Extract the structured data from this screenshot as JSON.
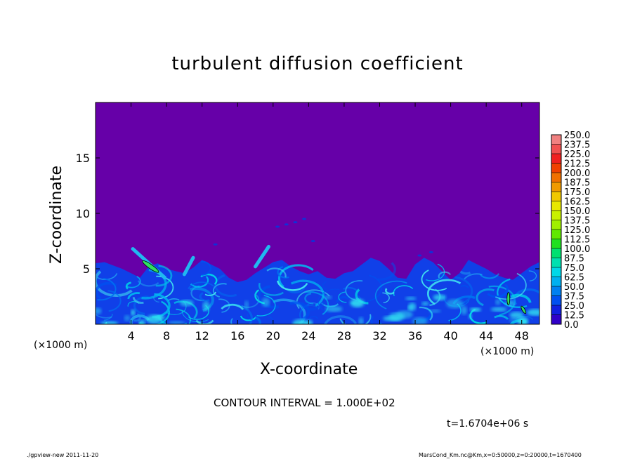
{
  "chart_data": {
    "type": "heatmap",
    "title": "turbulent diffusion coefficient",
    "xlabel": "X-coordinate",
    "ylabel": "Z-coordinate",
    "x_unit": "(×1000 m)",
    "y_unit": "(×1000 m)",
    "xlim": [
      0,
      50
    ],
    "ylim": [
      0,
      20
    ],
    "x_ticks": [
      4,
      8,
      12,
      16,
      20,
      24,
      28,
      32,
      36,
      40,
      44,
      48
    ],
    "y_ticks": [
      5,
      10,
      15
    ],
    "grid": false,
    "colorbar": {
      "levels": [
        "250.0",
        "237.5",
        "225.0",
        "212.5",
        "200.0",
        "187.5",
        "175.0",
        "162.5",
        "150.0",
        "137.5",
        "125.0",
        "112.5",
        "100.0",
        "87.5",
        "75.0",
        "62.5",
        "50.0",
        "37.5",
        "25.0",
        "12.5",
        "0.0"
      ],
      "colors": [
        "#f08080",
        "#f05050",
        "#f02020",
        "#f04000",
        "#f07000",
        "#f09a00",
        "#f0c800",
        "#e8e800",
        "#c8f000",
        "#a0f000",
        "#60e800",
        "#20e020",
        "#00e070",
        "#00e0b0",
        "#00d8e8",
        "#00b0f0",
        "#0080f0",
        "#0050f0",
        "#1020e0",
        "#3000c8",
        "#6600a8"
      ]
    },
    "contour_interval": "CONTOUR INTERVAL = 1.000E+02",
    "time_label": "t=1.6704e+06 s",
    "boundary_layer_top_km": [
      5.5,
      5.6,
      5.3,
      5.0,
      4.6,
      4.2,
      5.2,
      5.5,
      5.0,
      4.8,
      4.6,
      5.1,
      5.8,
      5.4,
      5.0,
      4.2,
      3.8,
      4.0,
      4.6,
      5.1,
      5.6,
      5.8,
      5.2,
      4.8,
      4.5,
      4.8,
      4.2,
      4.1,
      4.6,
      4.8,
      5.4,
      6.0,
      5.7,
      5.0,
      4.2,
      4.1,
      5.4,
      6.0,
      5.6,
      4.8,
      4.0,
      4.6,
      5.8,
      5.4,
      5.0,
      4.5,
      4.2,
      4.0,
      4.6,
      5.2,
      5.6
    ]
  },
  "footer": {
    "left": "./gpview-new   2011-11-20",
    "right": "MarsCond_Km.nc@Km,x=0:50000,z=0:20000,t=1670400"
  },
  "colors": {
    "background": "#6600a8",
    "axis": "#000000"
  }
}
